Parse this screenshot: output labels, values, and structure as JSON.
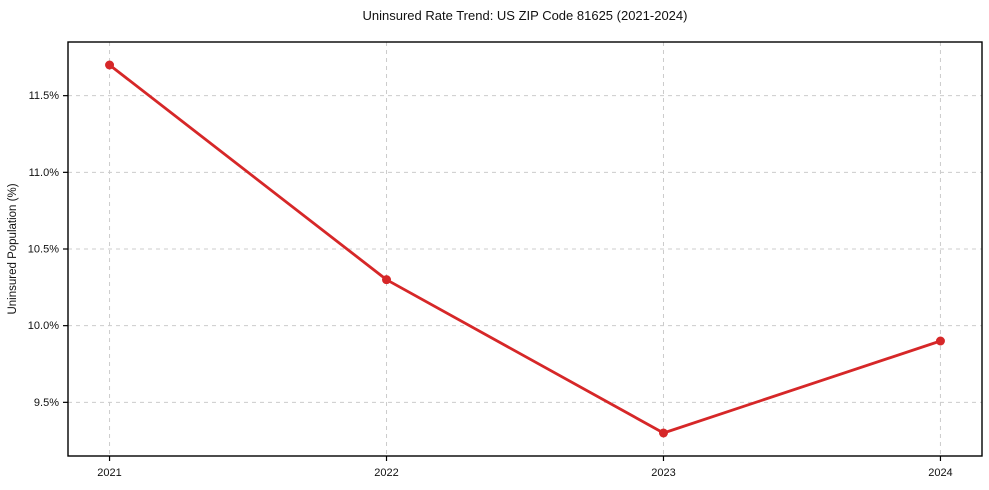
{
  "chart_data": {
    "type": "line",
    "title": "Uninsured Rate Trend: US ZIP Code 81625 (2021-2024)",
    "xlabel": "",
    "ylabel": "Uninsured Population (%)",
    "categories": [
      "2021",
      "2022",
      "2023",
      "2024"
    ],
    "x": [
      2021,
      2022,
      2023,
      2024
    ],
    "series": [
      {
        "name": "Uninsured Rate",
        "values": [
          11.7,
          10.3,
          9.3,
          9.9
        ]
      }
    ],
    "yticks": [
      9.5,
      10.0,
      10.5,
      11.0,
      11.5
    ],
    "ytick_labels": [
      "9.5%",
      "10.0%",
      "10.5%",
      "11.0%",
      "11.5%"
    ],
    "ylim": [
      9.15,
      11.85
    ],
    "xlim": [
      2020.85,
      2024.15
    ],
    "grid": true,
    "grid_style": "dashed",
    "legend": "none",
    "colors": {
      "line": "#d62728",
      "marker": "#d62728",
      "grid": "#cccccc",
      "spine": "#000000",
      "text": "#111111",
      "background": "#ffffff"
    }
  }
}
